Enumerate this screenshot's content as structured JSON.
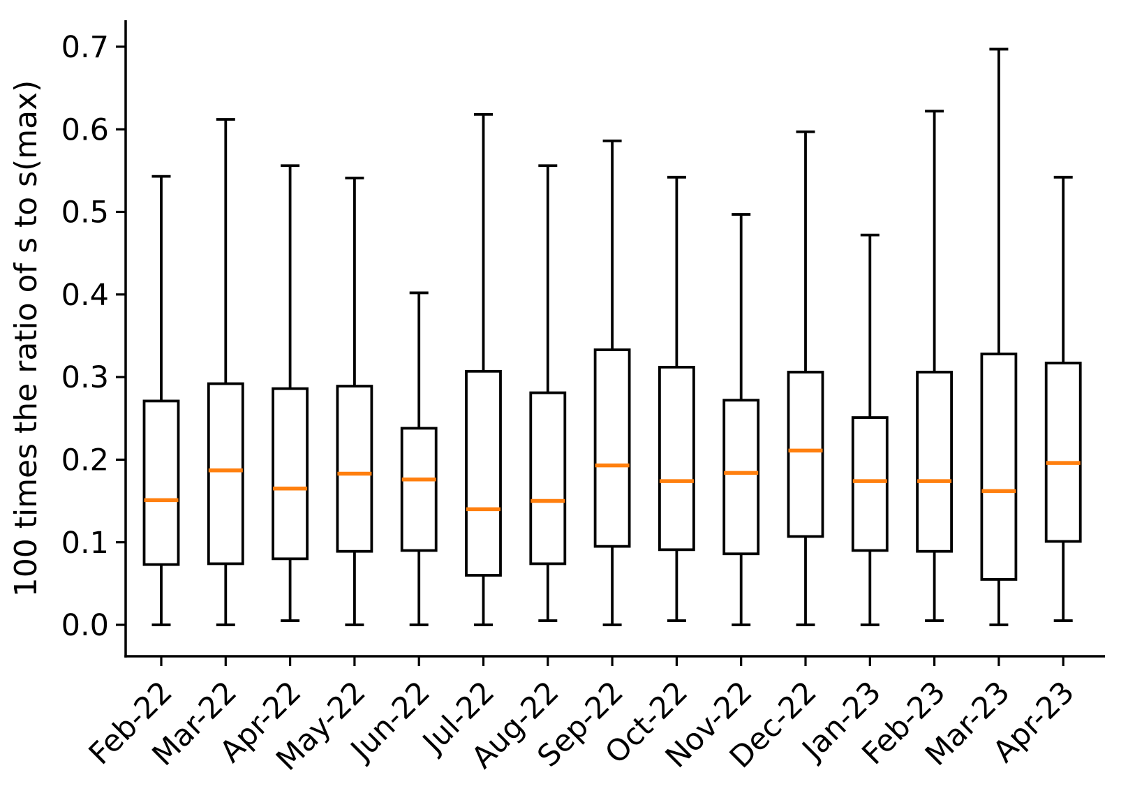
{
  "chart_data": {
    "type": "box",
    "title": "",
    "xlabel": "",
    "ylabel": "100 times the ratio of s to s(max)",
    "ylim": [
      -0.038,
      0.731
    ],
    "yticks": [
      0.0,
      0.1,
      0.2,
      0.3,
      0.4,
      0.5,
      0.6,
      0.7
    ],
    "ytick_labels": [
      "0.0",
      "0.1",
      "0.2",
      "0.3",
      "0.4",
      "0.5",
      "0.6",
      "0.7"
    ],
    "grid": false,
    "legend": false,
    "x_tick_rotation_deg": 45,
    "box_color": "#000000",
    "box_fill": "#ffffff",
    "median_color": "#ff7f0e",
    "categories": [
      "Feb-22",
      "Mar-22",
      "Apr-22",
      "May-22",
      "Jun-22",
      "Jul-22",
      "Aug-22",
      "Sep-22",
      "Oct-22",
      "Nov-22",
      "Dec-22",
      "Jan-23",
      "Feb-23",
      "Mar-23",
      "Apr-23"
    ],
    "series": [
      {
        "label": "Feb-22",
        "whisker_low": 0.0,
        "q1": 0.073,
        "median": 0.151,
        "q3": 0.271,
        "whisker_high": 0.543
      },
      {
        "label": "Mar-22",
        "whisker_low": 0.0,
        "q1": 0.074,
        "median": 0.187,
        "q3": 0.292,
        "whisker_high": 0.612
      },
      {
        "label": "Apr-22",
        "whisker_low": 0.005,
        "q1": 0.08,
        "median": 0.165,
        "q3": 0.286,
        "whisker_high": 0.556
      },
      {
        "label": "May-22",
        "whisker_low": 0.0,
        "q1": 0.089,
        "median": 0.183,
        "q3": 0.289,
        "whisker_high": 0.541
      },
      {
        "label": "Jun-22",
        "whisker_low": 0.0,
        "q1": 0.09,
        "median": 0.176,
        "q3": 0.238,
        "whisker_high": 0.402
      },
      {
        "label": "Jul-22",
        "whisker_low": 0.0,
        "q1": 0.06,
        "median": 0.14,
        "q3": 0.307,
        "whisker_high": 0.618
      },
      {
        "label": "Aug-22",
        "whisker_low": 0.005,
        "q1": 0.074,
        "median": 0.15,
        "q3": 0.281,
        "whisker_high": 0.556
      },
      {
        "label": "Sep-22",
        "whisker_low": 0.0,
        "q1": 0.095,
        "median": 0.193,
        "q3": 0.333,
        "whisker_high": 0.586
      },
      {
        "label": "Oct-22",
        "whisker_low": 0.005,
        "q1": 0.091,
        "median": 0.174,
        "q3": 0.312,
        "whisker_high": 0.542
      },
      {
        "label": "Nov-22",
        "whisker_low": 0.0,
        "q1": 0.086,
        "median": 0.184,
        "q3": 0.272,
        "whisker_high": 0.497
      },
      {
        "label": "Dec-22",
        "whisker_low": 0.0,
        "q1": 0.107,
        "median": 0.211,
        "q3": 0.306,
        "whisker_high": 0.597
      },
      {
        "label": "Jan-23",
        "whisker_low": 0.0,
        "q1": 0.09,
        "median": 0.174,
        "q3": 0.251,
        "whisker_high": 0.472
      },
      {
        "label": "Feb-23",
        "whisker_low": 0.005,
        "q1": 0.089,
        "median": 0.174,
        "q3": 0.306,
        "whisker_high": 0.622
      },
      {
        "label": "Mar-23",
        "whisker_low": 0.0,
        "q1": 0.055,
        "median": 0.162,
        "q3": 0.328,
        "whisker_high": 0.697
      },
      {
        "label": "Apr-23",
        "whisker_low": 0.005,
        "q1": 0.101,
        "median": 0.196,
        "q3": 0.317,
        "whisker_high": 0.542
      }
    ]
  }
}
